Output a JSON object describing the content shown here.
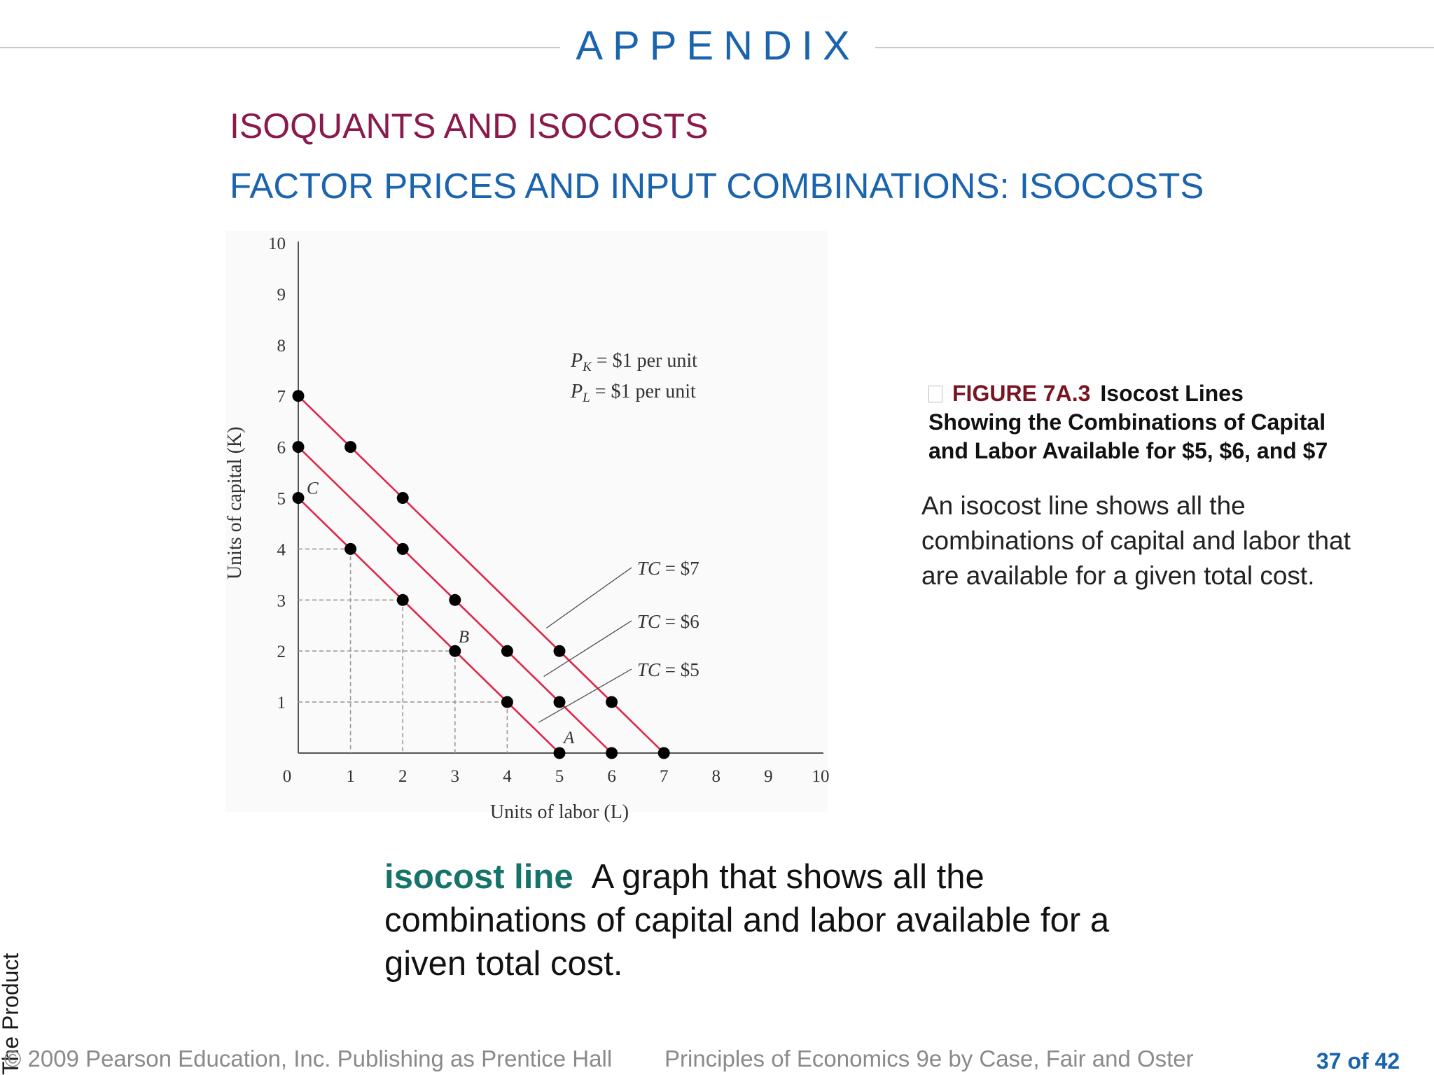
{
  "header": {
    "appendix": "APPENDIX"
  },
  "title": "ISOQUANTS AND ISOCOSTS",
  "subtitle": "FACTOR PRICES AND INPUT COMBINATIONS:  ISOCOSTS",
  "chart_data": {
    "type": "line",
    "xlabel": "Units of labor (L)",
    "ylabel": "Units of capital (K)",
    "xlim": [
      0,
      10
    ],
    "ylim": [
      0,
      10
    ],
    "xticks": [
      "0",
      "1",
      "2",
      "3",
      "4",
      "5",
      "6",
      "7",
      "8",
      "9",
      "10"
    ],
    "yticks": [
      "1",
      "2",
      "3",
      "4",
      "5",
      "6",
      "7",
      "8",
      "9",
      "10"
    ],
    "grid": false,
    "price_labels": [
      {
        "symbol": "P",
        "sub": "K",
        "text": " = $1 per unit"
      },
      {
        "symbol": "P",
        "sub": "L",
        "text": " = $1 per unit"
      }
    ],
    "series": [
      {
        "name": "TC = $7",
        "x": [
          0,
          1,
          2,
          3,
          4,
          5,
          6,
          7
        ],
        "y": [
          7,
          6,
          5,
          4,
          3,
          2,
          1,
          0
        ],
        "markers": [
          [
            0,
            7
          ],
          [
            1,
            6
          ],
          [
            2,
            5
          ],
          [
            5,
            2
          ],
          [
            6,
            1
          ],
          [
            7,
            0
          ]
        ],
        "label_anchor": [
          4.75,
          2.45
        ]
      },
      {
        "name": "TC = $6",
        "x": [
          0,
          1,
          2,
          3,
          4,
          5,
          6
        ],
        "y": [
          6,
          5,
          4,
          3,
          2,
          1,
          0
        ],
        "markers": [
          [
            0,
            6
          ],
          [
            2,
            4
          ],
          [
            3,
            3
          ],
          [
            4,
            2
          ],
          [
            5,
            1
          ],
          [
            6,
            0
          ]
        ],
        "label_anchor": [
          4.7,
          1.5
        ]
      },
      {
        "name": "TC = $5",
        "x": [
          0,
          1,
          2,
          3,
          4,
          5
        ],
        "y": [
          5,
          4,
          3,
          2,
          1,
          0
        ],
        "markers": [
          [
            0,
            5
          ],
          [
            1,
            4
          ],
          [
            2,
            3
          ],
          [
            3,
            2
          ],
          [
            4,
            1
          ],
          [
            5,
            0
          ]
        ],
        "label_anchor": [
          4.6,
          0.6
        ]
      }
    ],
    "tc_label_parts": {
      "prefix": "TC",
      "values": [
        " = $7",
        " = $6",
        " = $5"
      ]
    },
    "point_labels": [
      {
        "text": "C",
        "x": 0,
        "y": 5
      },
      {
        "text": "B",
        "x": 3,
        "y": 2
      },
      {
        "text": "A",
        "x": 5,
        "y": 0
      }
    ],
    "guides": [
      [
        1,
        4
      ],
      [
        2,
        3
      ],
      [
        3,
        2
      ],
      [
        4,
        1
      ]
    ],
    "colors": {
      "line": "#e0254a",
      "marker": "#000000",
      "axis": "#555555",
      "guide": "#9a9a9a"
    }
  },
  "figure": {
    "number": "FIGURE 7A.3",
    "title_lines": [
      "Isocost Lines",
      "Showing the Combinations of Capital",
      "and Labor Available for $5, $6, and $7"
    ],
    "description": "An isocost line shows all the combinations of capital and labor that are available for a given total cost."
  },
  "definition": {
    "term": "isocost line",
    "text": "A graph that shows all the combinations of capital and labor available for a given total cost."
  },
  "side_text": "The Product",
  "footer": {
    "copyright": "© 2009 Pearson Education, Inc. Publishing as Prentice Hall",
    "book": "Principles of Economics 9e by Case, Fair and Oster",
    "page": "37 of 42"
  }
}
